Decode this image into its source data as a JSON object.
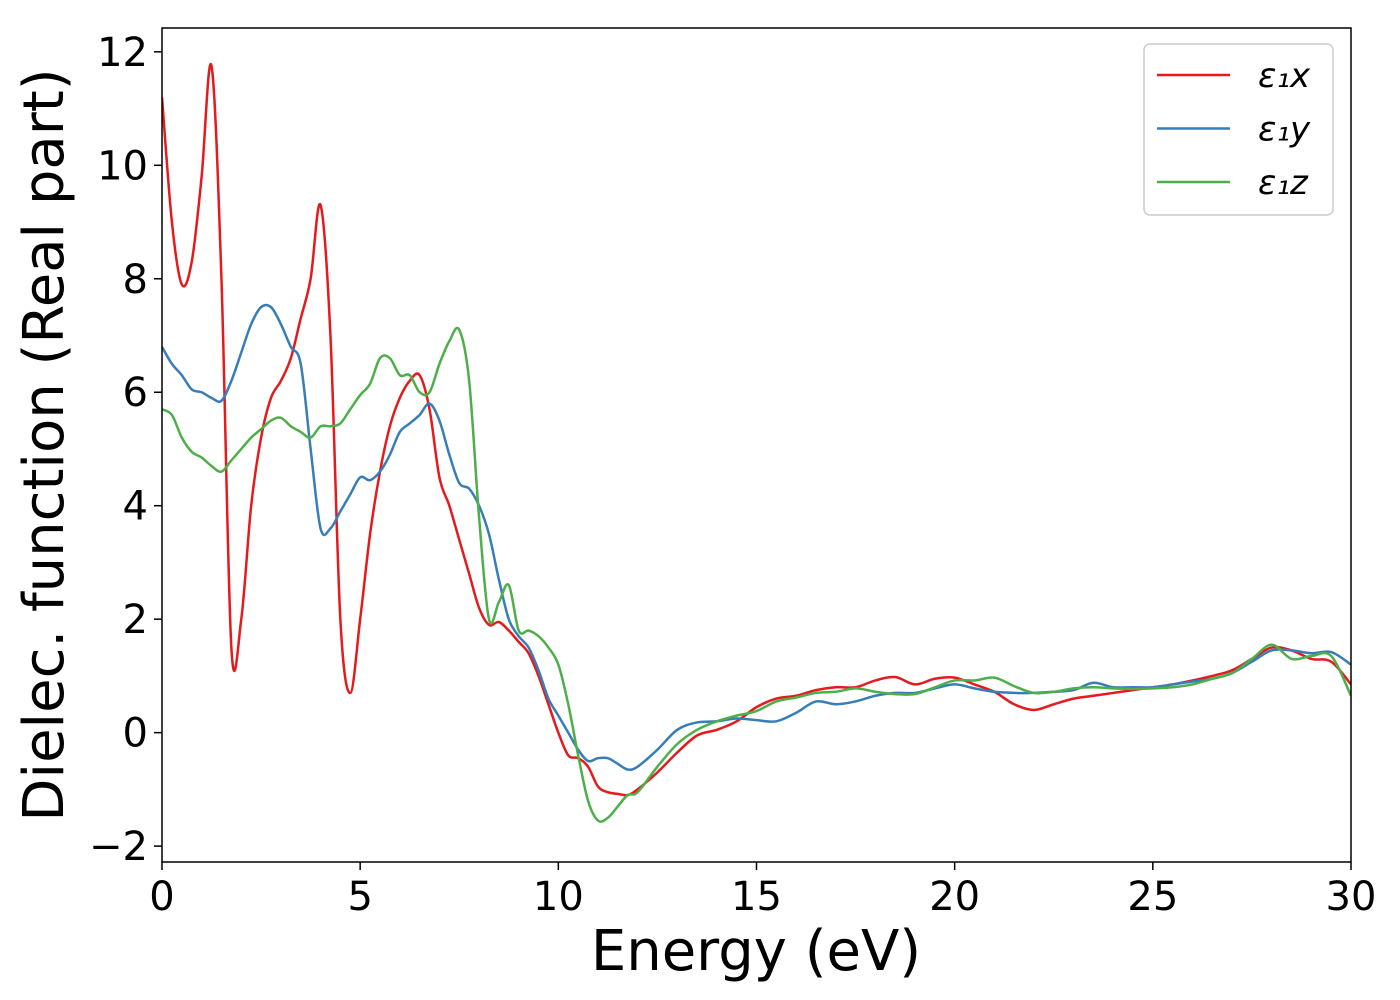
{
  "chart_data": {
    "type": "line",
    "xlabel": "Energy (eV)",
    "ylabel": "Dielec. function (Real part)",
    "x": [
      0,
      0.25,
      0.5,
      0.75,
      1,
      1.25,
      1.5,
      1.75,
      2,
      2.25,
      2.5,
      2.75,
      3,
      3.25,
      3.5,
      3.75,
      4,
      4.25,
      4.5,
      4.75,
      5,
      5.25,
      5.5,
      5.75,
      6,
      6.25,
      6.5,
      6.75,
      7,
      7.25,
      7.5,
      7.75,
      8,
      8.25,
      8.5,
      8.75,
      9,
      9.25,
      9.5,
      9.75,
      10,
      10.25,
      10.5,
      10.75,
      11,
      11.25,
      11.5,
      11.75,
      12,
      12.5,
      13,
      13.5,
      14,
      14.5,
      15,
      15.5,
      16,
      16.5,
      17,
      17.5,
      18,
      18.5,
      19,
      19.5,
      20,
      20.5,
      21,
      21.5,
      22,
      22.5,
      23,
      23.5,
      24,
      24.5,
      25,
      25.5,
      26,
      26.5,
      27,
      27.5,
      28,
      28.5,
      29,
      29.5,
      30
    ],
    "series": [
      {
        "name": "ε₁x",
        "color": "#e41a1c",
        "values": [
          11.2,
          9.0,
          7.9,
          8.3,
          9.8,
          11.75,
          8.0,
          1.5,
          2.0,
          4.0,
          5.2,
          5.9,
          6.2,
          6.6,
          7.3,
          8.0,
          9.3,
          7.0,
          2.0,
          0.7,
          2.0,
          3.5,
          4.6,
          5.4,
          5.9,
          6.2,
          6.3,
          5.7,
          4.5,
          4.0,
          3.4,
          2.8,
          2.2,
          1.9,
          1.95,
          1.8,
          1.6,
          1.4,
          1.0,
          0.5,
          0.0,
          -0.4,
          -0.45,
          -0.6,
          -0.95,
          -1.05,
          -1.08,
          -1.1,
          -1.0,
          -0.7,
          -0.35,
          -0.05,
          0.05,
          0.2,
          0.45,
          0.6,
          0.65,
          0.75,
          0.8,
          0.8,
          0.92,
          0.98,
          0.85,
          0.95,
          0.97,
          0.85,
          0.72,
          0.5,
          0.4,
          0.5,
          0.6,
          0.65,
          0.7,
          0.75,
          0.8,
          0.85,
          0.92,
          1.0,
          1.1,
          1.3,
          1.5,
          1.45,
          1.3,
          1.25,
          0.85
        ]
      },
      {
        "name": "ε₁y",
        "color": "#377eb8",
        "values": [
          6.8,
          6.5,
          6.3,
          6.05,
          6.0,
          5.9,
          5.85,
          6.2,
          6.7,
          7.2,
          7.5,
          7.5,
          7.2,
          6.8,
          6.5,
          5.0,
          3.6,
          3.6,
          3.9,
          4.2,
          4.5,
          4.45,
          4.6,
          4.9,
          5.3,
          5.45,
          5.6,
          5.8,
          5.5,
          4.9,
          4.4,
          4.3,
          4.0,
          3.5,
          2.7,
          2.0,
          1.7,
          1.5,
          1.1,
          0.6,
          0.3,
          0.0,
          -0.3,
          -0.5,
          -0.45,
          -0.45,
          -0.55,
          -0.65,
          -0.6,
          -0.3,
          0.05,
          0.18,
          0.2,
          0.25,
          0.22,
          0.2,
          0.35,
          0.55,
          0.5,
          0.55,
          0.65,
          0.7,
          0.7,
          0.78,
          0.85,
          0.78,
          0.72,
          0.7,
          0.7,
          0.72,
          0.75,
          0.88,
          0.8,
          0.8,
          0.8,
          0.85,
          0.9,
          0.95,
          1.05,
          1.25,
          1.45,
          1.45,
          1.4,
          1.42,
          1.2
        ]
      },
      {
        "name": "ε₁z",
        "color": "#4daf4a",
        "values": [
          5.7,
          5.6,
          5.2,
          4.95,
          4.85,
          4.7,
          4.6,
          4.8,
          5.0,
          5.2,
          5.35,
          5.5,
          5.55,
          5.4,
          5.3,
          5.2,
          5.4,
          5.4,
          5.45,
          5.7,
          5.95,
          6.15,
          6.6,
          6.6,
          6.3,
          6.3,
          6.0,
          6.0,
          6.5,
          6.9,
          7.1,
          6.2,
          3.8,
          2.0,
          2.3,
          2.6,
          1.8,
          1.8,
          1.7,
          1.5,
          1.2,
          0.5,
          -0.4,
          -1.2,
          -1.55,
          -1.5,
          -1.3,
          -1.1,
          -1.05,
          -0.6,
          -0.2,
          0.05,
          0.2,
          0.3,
          0.38,
          0.55,
          0.62,
          0.7,
          0.72,
          0.78,
          0.72,
          0.68,
          0.68,
          0.8,
          0.92,
          0.92,
          0.97,
          0.82,
          0.7,
          0.72,
          0.78,
          0.8,
          0.78,
          0.77,
          0.78,
          0.8,
          0.85,
          0.95,
          1.05,
          1.3,
          1.55,
          1.3,
          1.35,
          1.35,
          0.65
        ]
      }
    ],
    "xlim": [
      0,
      30
    ],
    "xticks": [
      0,
      5,
      10,
      15,
      20,
      25,
      30
    ],
    "ylim": [
      -2.28,
      12.42
    ],
    "yticks": [
      {
        "value": -2,
        "label": "−2"
      },
      0,
      2,
      4,
      6,
      8,
      10,
      12
    ],
    "grid": false,
    "legend": "upper right"
  }
}
